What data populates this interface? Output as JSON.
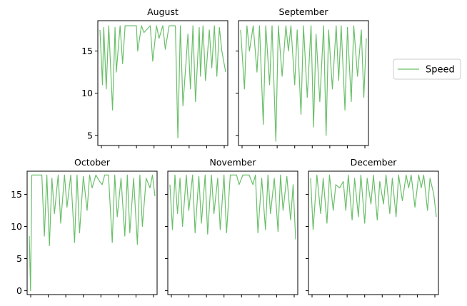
{
  "chart_data": [
    {
      "type": "line",
      "title": "August",
      "ylim": [
        3.8,
        18.6
      ],
      "yticks": [
        5,
        10,
        15
      ],
      "series": [
        {
          "name": "Speed",
          "color": "#6abf69",
          "x": [
            0.0,
            0.02,
            0.03,
            0.05,
            0.07,
            0.1,
            0.12,
            0.13,
            0.16,
            0.18,
            0.2,
            0.22,
            0.24,
            0.27,
            0.29,
            0.3,
            0.33,
            0.35,
            0.4,
            0.42,
            0.45,
            0.47,
            0.5,
            0.52,
            0.55,
            0.58,
            0.6,
            0.62,
            0.64,
            0.66,
            0.7,
            0.72,
            0.74,
            0.76,
            0.79,
            0.8,
            0.82,
            0.84,
            0.87,
            0.89,
            0.91,
            0.93,
            0.95,
            0.97,
            1.0
          ],
          "y": [
            17.5,
            11.0,
            17.8,
            10.5,
            18.0,
            8.0,
            17.8,
            12.5,
            18.0,
            13.5,
            18.0,
            18.0,
            18.0,
            18.0,
            18.0,
            15.0,
            18.0,
            17.2,
            18.0,
            13.8,
            18.0,
            16.5,
            18.0,
            15.2,
            18.0,
            18.0,
            18.0,
            4.7,
            18.0,
            8.5,
            17.0,
            10.5,
            18.0,
            9.0,
            17.8,
            12.0,
            18.0,
            11.5,
            17.5,
            13.0,
            18.0,
            12.0,
            17.8,
            15.0,
            12.5
          ]
        }
      ]
    },
    {
      "type": "line",
      "title": "September",
      "ylim": [
        3.8,
        18.6
      ],
      "yticks": [
        5,
        10,
        15
      ],
      "series": [
        {
          "name": "Speed",
          "color": "#6abf69",
          "x": [
            0.0,
            0.03,
            0.05,
            0.07,
            0.1,
            0.13,
            0.15,
            0.18,
            0.2,
            0.23,
            0.25,
            0.28,
            0.3,
            0.33,
            0.36,
            0.38,
            0.4,
            0.43,
            0.45,
            0.48,
            0.5,
            0.53,
            0.56,
            0.58,
            0.6,
            0.63,
            0.66,
            0.68,
            0.7,
            0.73,
            0.76,
            0.78,
            0.8,
            0.83,
            0.85,
            0.88,
            0.9,
            0.93,
            0.96,
            0.98,
            1.0
          ],
          "y": [
            17.5,
            10.5,
            18.0,
            15.0,
            18.0,
            12.5,
            18.0,
            6.3,
            18.0,
            11.0,
            18.0,
            4.3,
            18.0,
            12.0,
            18.0,
            15.0,
            18.0,
            11.0,
            17.5,
            7.5,
            18.0,
            9.5,
            18.0,
            6.0,
            17.0,
            9.0,
            18.0,
            5.0,
            17.5,
            10.5,
            18.0,
            11.5,
            18.0,
            8.0,
            17.8,
            9.0,
            18.0,
            12.0,
            17.5,
            9.5,
            16.5
          ]
        }
      ]
    },
    {
      "type": "line",
      "title": "October",
      "ylim": [
        -0.6,
        18.6
      ],
      "yticks": [
        0,
        5,
        10,
        15
      ],
      "series": [
        {
          "name": "Speed",
          "color": "#6abf69",
          "x": [
            0.0,
            0.01,
            0.02,
            0.03,
            0.1,
            0.12,
            0.14,
            0.16,
            0.18,
            0.2,
            0.23,
            0.25,
            0.28,
            0.3,
            0.33,
            0.36,
            0.38,
            0.4,
            0.43,
            0.46,
            0.48,
            0.5,
            0.53,
            0.56,
            0.58,
            0.6,
            0.63,
            0.66,
            0.68,
            0.7,
            0.73,
            0.76,
            0.78,
            0.8,
            0.83,
            0.86,
            0.88,
            0.9,
            0.93,
            0.96,
            0.98,
            1.0
          ],
          "y": [
            8.5,
            0.0,
            18.0,
            18.0,
            18.0,
            8.5,
            18.0,
            7.0,
            17.5,
            12.0,
            18.0,
            10.5,
            18.0,
            13.0,
            18.0,
            7.5,
            18.0,
            9.0,
            17.8,
            12.5,
            18.0,
            16.0,
            18.0,
            17.0,
            16.5,
            18.0,
            18.0,
            7.5,
            18.0,
            11.5,
            17.5,
            8.5,
            18.0,
            9.0,
            17.5,
            7.2,
            18.0,
            10.0,
            17.5,
            16.0,
            18.0,
            14.7
          ]
        }
      ]
    },
    {
      "type": "line",
      "title": "November",
      "ylim": [
        -0.6,
        18.6
      ],
      "yticks": [
        0,
        5,
        10,
        15
      ],
      "series": [
        {
          "name": "Speed",
          "color": "#6abf69",
          "x": [
            0.0,
            0.02,
            0.04,
            0.06,
            0.08,
            0.1,
            0.13,
            0.15,
            0.18,
            0.2,
            0.23,
            0.25,
            0.28,
            0.3,
            0.33,
            0.35,
            0.38,
            0.4,
            0.43,
            0.45,
            0.48,
            0.5,
            0.53,
            0.55,
            0.58,
            0.6,
            0.63,
            0.66,
            0.68,
            0.7,
            0.73,
            0.76,
            0.78,
            0.8,
            0.83,
            0.86,
            0.88,
            0.9,
            0.93,
            0.96,
            0.98,
            1.0
          ],
          "y": [
            16.5,
            9.5,
            18.0,
            12.0,
            17.5,
            10.0,
            18.0,
            12.5,
            18.0,
            9.0,
            17.8,
            10.5,
            18.0,
            8.8,
            18.0,
            12.0,
            17.5,
            9.5,
            18.0,
            9.0,
            18.0,
            18.0,
            18.0,
            16.5,
            18.0,
            18.0,
            18.0,
            16.5,
            18.0,
            9.0,
            17.5,
            9.5,
            18.0,
            12.0,
            17.5,
            9.2,
            18.0,
            12.5,
            17.8,
            11.0,
            16.5,
            8.0
          ]
        }
      ]
    },
    {
      "type": "line",
      "title": "December",
      "ylim": [
        -0.6,
        18.6
      ],
      "yticks": [
        0,
        5,
        10,
        15
      ],
      "series": [
        {
          "name": "Speed",
          "color": "#6abf69",
          "x": [
            0.0,
            0.02,
            0.05,
            0.08,
            0.1,
            0.13,
            0.15,
            0.18,
            0.2,
            0.23,
            0.26,
            0.28,
            0.3,
            0.33,
            0.35,
            0.38,
            0.4,
            0.43,
            0.45,
            0.48,
            0.5,
            0.53,
            0.55,
            0.58,
            0.6,
            0.63,
            0.65,
            0.68,
            0.7,
            0.73,
            0.76,
            0.78,
            0.8,
            0.83,
            0.86,
            0.88,
            0.9,
            0.93,
            0.95,
            0.98,
            1.0
          ],
          "y": [
            17.5,
            9.5,
            18.0,
            12.0,
            17.5,
            10.5,
            18.0,
            12.5,
            16.5,
            16.0,
            17.0,
            12.5,
            18.0,
            11.0,
            17.5,
            11.5,
            18.0,
            10.5,
            17.5,
            13.5,
            18.0,
            11.0,
            17.0,
            13.5,
            18.0,
            12.0,
            17.5,
            11.5,
            18.0,
            14.0,
            18.0,
            16.0,
            18.0,
            13.0,
            18.0,
            16.0,
            18.0,
            12.5,
            17.5,
            15.0,
            11.5
          ]
        }
      ]
    }
  ],
  "legend": {
    "label": "Speed",
    "color": "#6abf69",
    "position": "right"
  }
}
